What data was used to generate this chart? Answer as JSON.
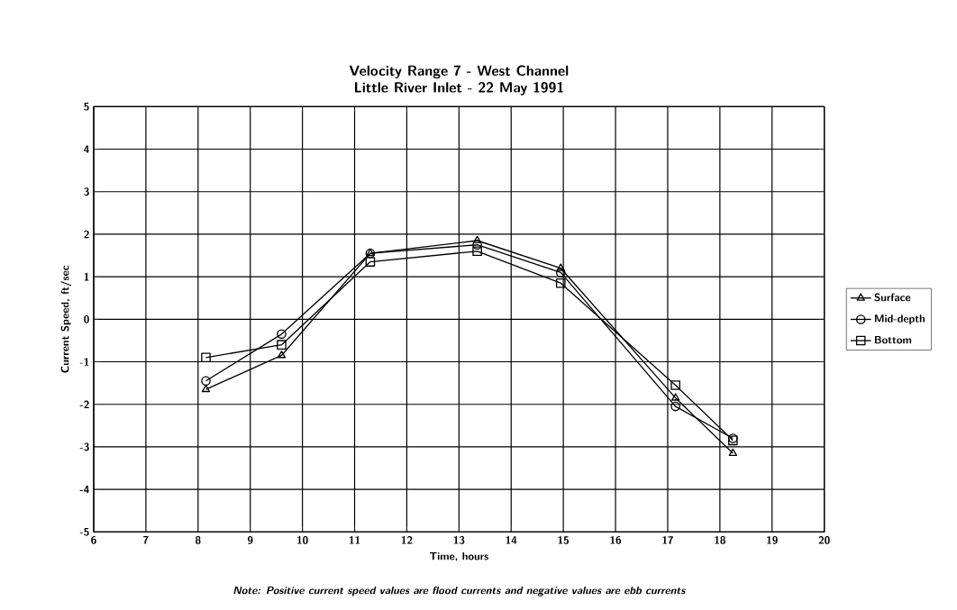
{
  "chart_data": {
    "type": "line",
    "title": "Velocity Range 7 - West Channel",
    "subtitle": "Little River Inlet - 22 May 1991",
    "xlabel": "Time, hours",
    "ylabel": "Current Speed, ft/sec",
    "x": [
      8.15,
      9.6,
      11.3,
      13.35,
      14.95,
      17.15,
      18.25
    ],
    "series": [
      {
        "name": "Surface",
        "color": "#000000",
        "marker": "triangle",
        "values": [
          -1.65,
          -0.85,
          1.55,
          1.85,
          1.2,
          -1.85,
          -3.15
        ]
      },
      {
        "name": "Mid-depth",
        "color": "#000000",
        "marker": "circle",
        "values": [
          -1.45,
          -0.35,
          1.55,
          1.75,
          1.1,
          -2.05,
          -2.8
        ]
      },
      {
        "name": "Bottom",
        "color": "#000000",
        "marker": "square",
        "values": [
          -0.9,
          -0.6,
          1.35,
          1.6,
          0.85,
          -1.55,
          -2.85
        ]
      }
    ],
    "xlim": [
      6,
      20
    ],
    "xticks": [
      6,
      7,
      8,
      9,
      10,
      11,
      12,
      13,
      14,
      15,
      16,
      17,
      18,
      19,
      20
    ],
    "ylim": [
      -5,
      5
    ],
    "yticks": [
      -5,
      -4,
      -3,
      -2,
      -1,
      0,
      1,
      2,
      3,
      4,
      5
    ],
    "grid": true,
    "legend": "right",
    "line_style": "solid",
    "annotations": [
      "Note: Positive current speed values are flood currents and negative values are ebb currents"
    ]
  }
}
